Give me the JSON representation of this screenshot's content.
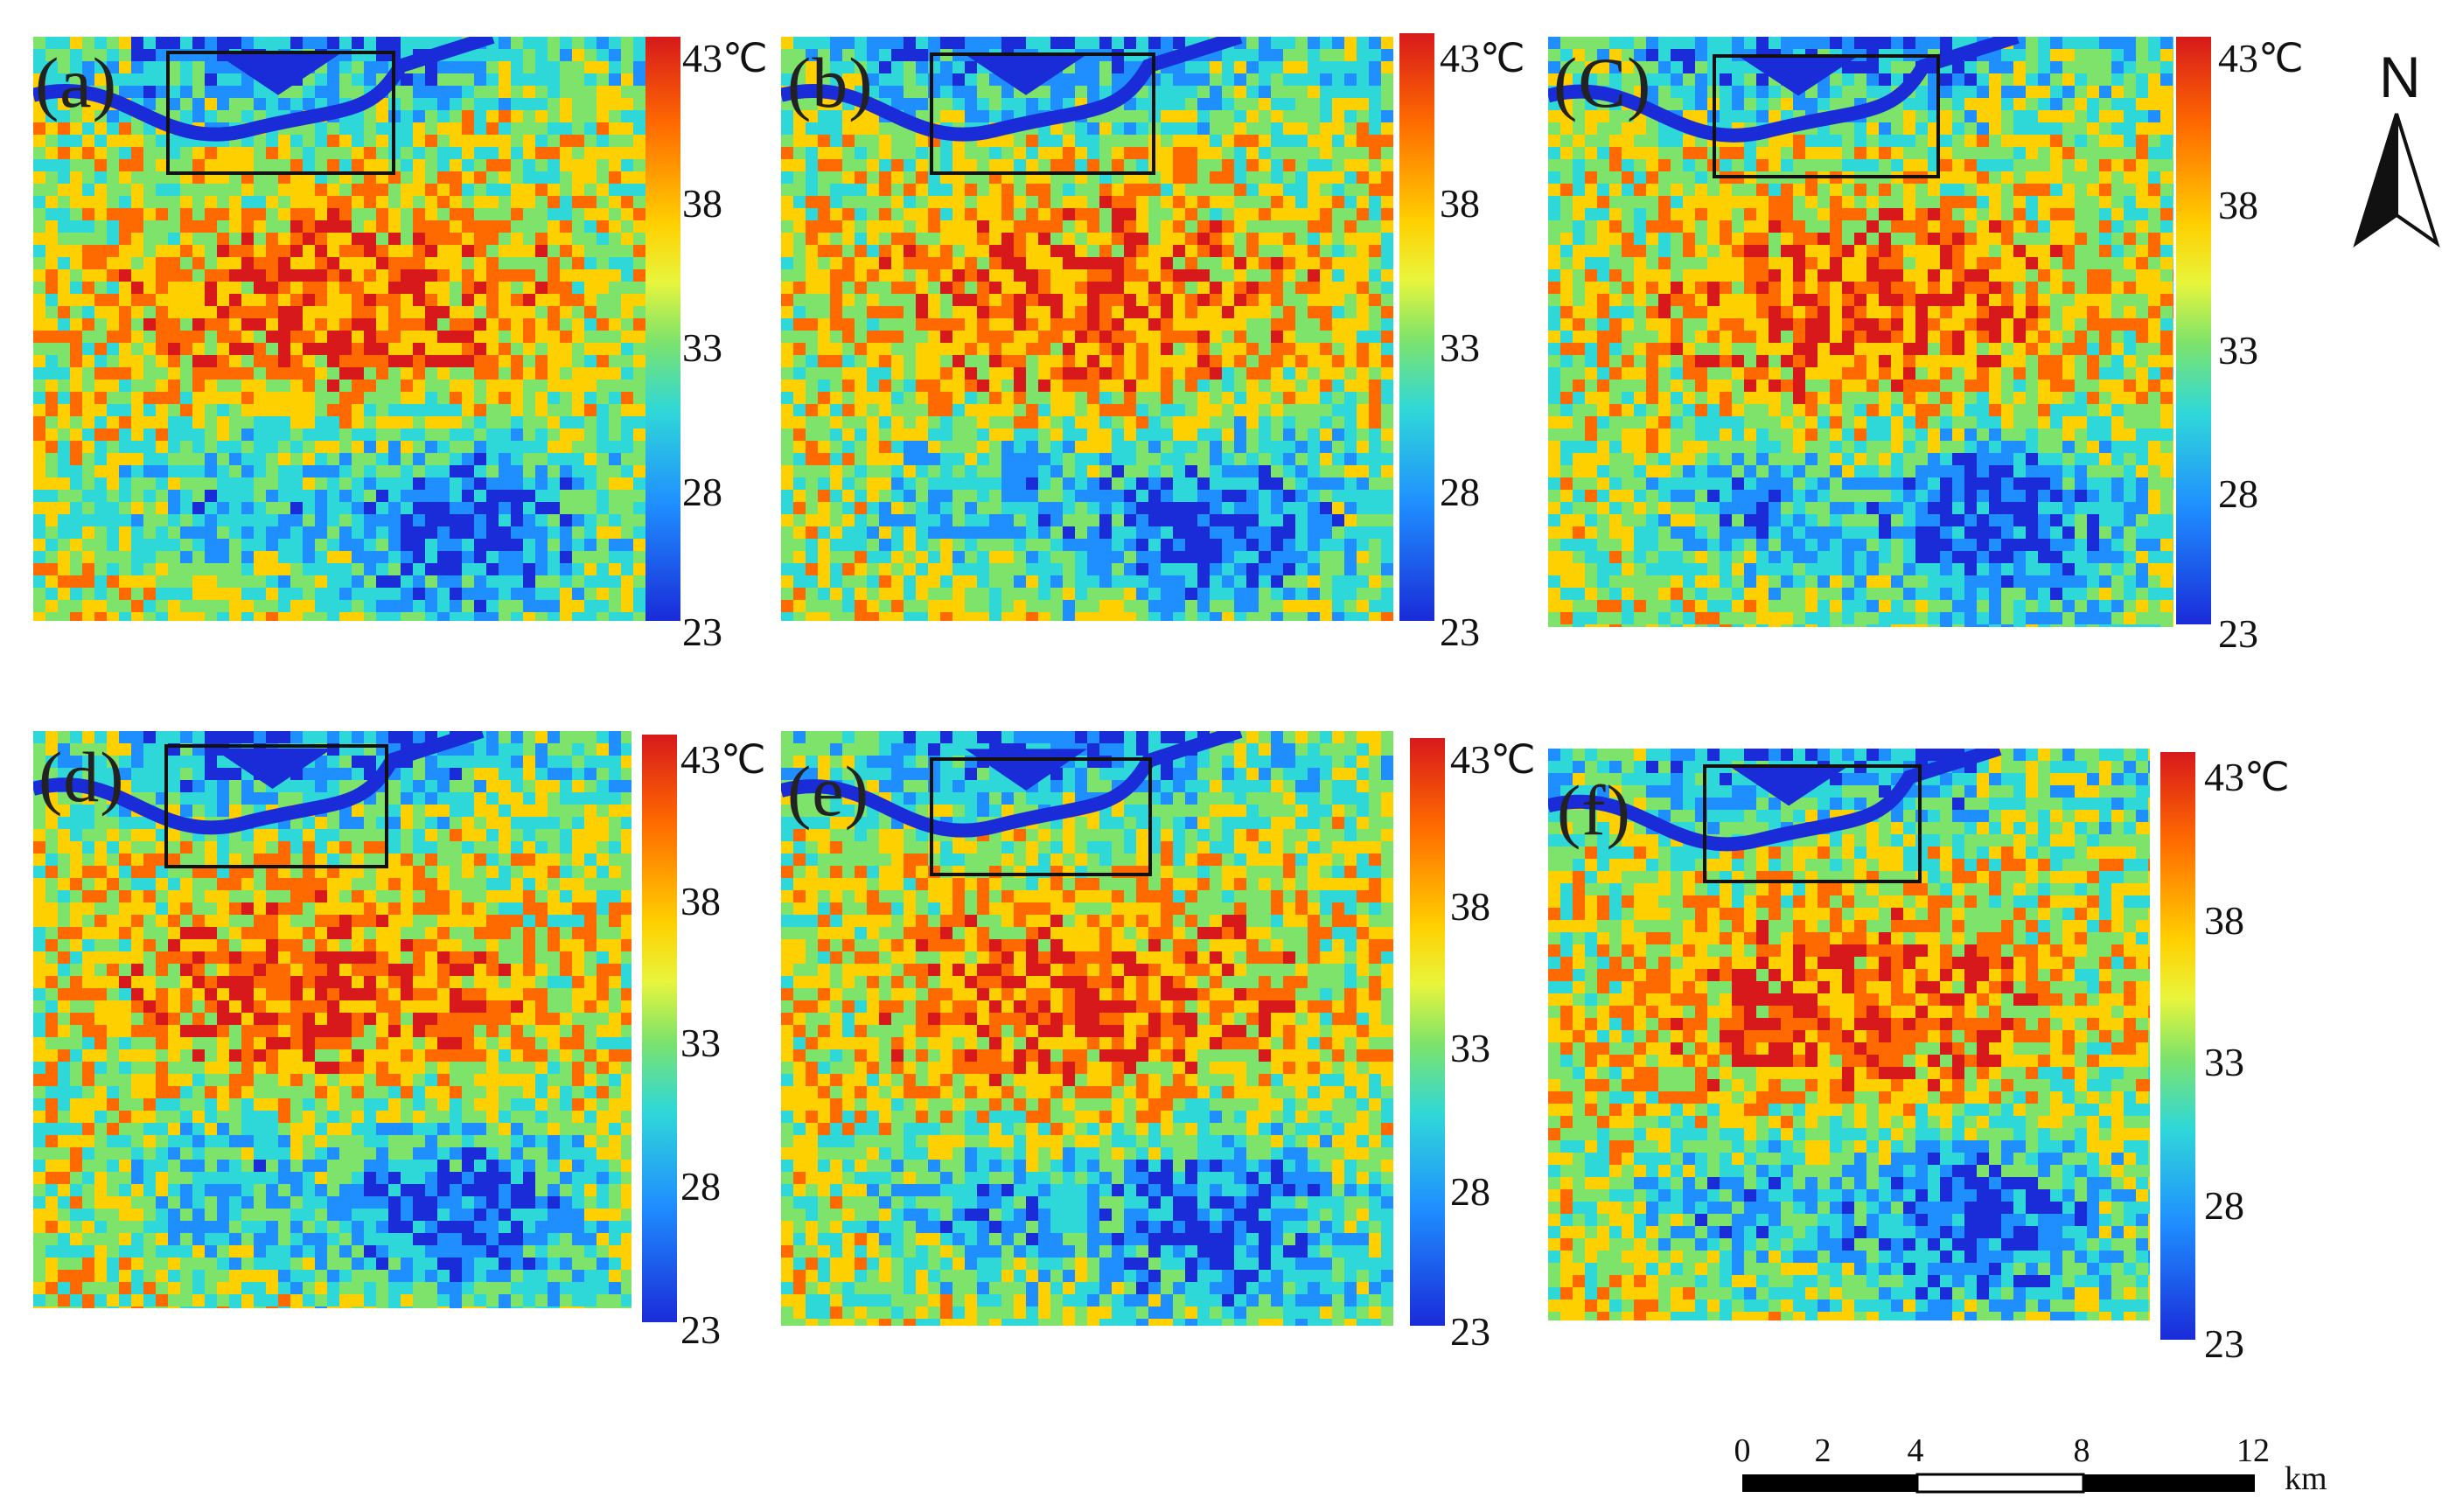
{
  "figure": {
    "panels": [
      {
        "id": "a",
        "label": "(a)"
      },
      {
        "id": "b",
        "label": "(b)"
      },
      {
        "id": "c",
        "label": "(C)"
      },
      {
        "id": "d",
        "label": "(d)"
      },
      {
        "id": "e",
        "label": "(e)"
      },
      {
        "id": "f",
        "label": "(f)"
      }
    ],
    "colorbar": {
      "title_value": "43℃",
      "ticks": [
        "43℃",
        "38",
        "33",
        "28",
        "23"
      ],
      "range_celsius": [
        23,
        43
      ],
      "colors": [
        "#d7191c",
        "#ff6a00",
        "#ffd000",
        "#7ee36a",
        "#2fd8d8",
        "#1f8fff",
        "#1a2bd8"
      ]
    },
    "north_arrow": {
      "label": "N"
    },
    "scale_bar": {
      "ticks": [
        "0",
        "2",
        "4",
        "8",
        "12"
      ],
      "unit": "km",
      "tick_values_km": [
        0,
        2,
        4,
        8,
        12
      ]
    }
  }
}
